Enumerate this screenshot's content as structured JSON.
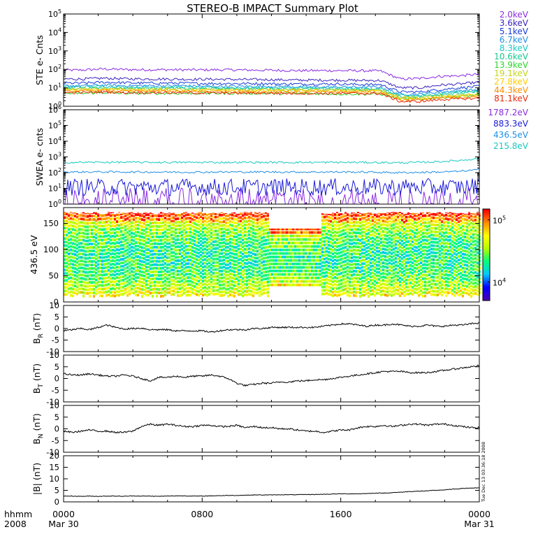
{
  "title": "STEREO-B IMPACT Summary Plot",
  "timestamp": "Tue Dec 13 03:36:18 2008",
  "x_axis": {
    "row1_label": "hhmm",
    "row2_label": "2008",
    "ticks": [
      {
        "hours": 0,
        "label": "0000",
        "date": "Mar 30"
      },
      {
        "hours": 8,
        "label": "0800",
        "date": ""
      },
      {
        "hours": 16,
        "label": "1600",
        "date": ""
      },
      {
        "hours": 24,
        "label": "0000",
        "date": "Mar 31"
      }
    ]
  },
  "chart_data": [
    {
      "type": "line",
      "id": "ste",
      "ylabel": "STE e- Cnts",
      "yscale": "log",
      "ylim": [
        1,
        100000
      ],
      "ytick_exponents": [
        0,
        1,
        2,
        3,
        4,
        5
      ],
      "series": [
        {
          "name": "2.0keV",
          "color": "#8a2be2",
          "values": [
            90,
            92,
            105,
            98,
            95,
            96,
            94,
            93,
            95,
            92,
            90,
            88,
            85,
            86,
            85,
            84,
            82,
            30,
            32,
            42,
            45,
            55
          ]
        },
        {
          "name": "3.6keV",
          "color": "#3a22c0",
          "values": [
            30,
            30,
            33,
            31,
            30,
            30,
            29,
            29,
            29,
            28,
            28,
            27,
            26,
            26,
            26,
            25,
            25,
            10,
            10,
            14,
            16,
            20
          ]
        },
        {
          "name": "5.1keV",
          "color": "#1a3ad8",
          "values": [
            18,
            18,
            20,
            19,
            18,
            18,
            18,
            17,
            17,
            17,
            17,
            16,
            16,
            16,
            16,
            15,
            15,
            6,
            6,
            8,
            10,
            12
          ]
        },
        {
          "name": "6.7keV",
          "color": "#1e8fe6",
          "values": [
            13,
            13,
            14,
            13,
            13,
            13,
            13,
            12,
            12,
            12,
            12,
            12,
            11,
            11,
            11,
            11,
            11,
            4.5,
            4.5,
            6,
            7,
            8
          ]
        },
        {
          "name": "8.3keV",
          "color": "#19c9c1",
          "values": [
            11,
            11,
            12,
            11,
            11,
            11,
            11,
            10,
            10,
            10,
            10,
            10,
            10,
            9.5,
            9.5,
            9,
            9,
            3.8,
            3.8,
            5,
            6,
            7
          ]
        },
        {
          "name": "10.6keV",
          "color": "#1ac890",
          "values": [
            9.5,
            9.5,
            10,
            9.5,
            9.5,
            9.5,
            9,
            9,
            9,
            9,
            9,
            8.5,
            8.5,
            8.5,
            8,
            8,
            8,
            3.3,
            3.3,
            4.4,
            5,
            6
          ]
        },
        {
          "name": "13.9keV",
          "color": "#2ad62a",
          "values": [
            5,
            5,
            5.5,
            5,
            5,
            5,
            5,
            5,
            5,
            5,
            5,
            4.8,
            4.8,
            4.8,
            4.6,
            4.6,
            4.6,
            2.5,
            2.5,
            3,
            3.5,
            4
          ]
        },
        {
          "name": "19.1keV",
          "color": "#c2d61e",
          "values": [
            8.5,
            8.5,
            9,
            8.5,
            8.5,
            8.5,
            8,
            8,
            8,
            8,
            8,
            7.8,
            7.8,
            7.6,
            7.5,
            7.5,
            7.5,
            3,
            3,
            3.6,
            4,
            4.5
          ]
        },
        {
          "name": "27.8keV",
          "color": "#ffcc00",
          "values": [
            7.5,
            7.5,
            8,
            7.5,
            7.5,
            7.5,
            7.2,
            7.2,
            7.2,
            7,
            7,
            7,
            7,
            6.8,
            6.8,
            6.6,
            6.6,
            2.6,
            2.6,
            3.2,
            3.4,
            3.8
          ]
        },
        {
          "name": "44.3keV",
          "color": "#ff8c00",
          "values": [
            6.5,
            6.5,
            7,
            6.5,
            6.5,
            6.5,
            6.3,
            6.3,
            6.2,
            6.2,
            6,
            6,
            6,
            6,
            5.8,
            5.8,
            5.8,
            2.2,
            2.2,
            2.8,
            3,
            3.2
          ]
        },
        {
          "name": "81.1keV",
          "color": "#e82a0a",
          "values": [
            5.5,
            5.5,
            6,
            5.5,
            5.5,
            5.5,
            5.3,
            5.3,
            5.2,
            5.2,
            5.2,
            5,
            5,
            5,
            5,
            4.9,
            4.9,
            1.8,
            1.8,
            2.3,
            2.5,
            2.7
          ]
        }
      ]
    },
    {
      "type": "line",
      "id": "swea",
      "ylabel": "SWEA e- cnts",
      "yscale": "log",
      "ylim": [
        1,
        1000000
      ],
      "ytick_exponents": [
        0,
        1,
        2,
        3,
        4,
        5,
        6
      ],
      "series": [
        {
          "name": "1787.2eV",
          "color": "#8a2be2",
          "values": [
            3,
            3,
            3,
            3,
            3,
            3,
            3,
            3,
            3,
            3,
            3,
            3,
            3,
            3,
            3,
            3,
            3,
            3,
            3,
            3,
            3,
            3
          ]
        },
        {
          "name": "883.3eV",
          "color": "#1a1ad8",
          "values": [
            12,
            12,
            12,
            12,
            12,
            12,
            12,
            12,
            12,
            12,
            12,
            12,
            12,
            12,
            12,
            12,
            12,
            12,
            12,
            12,
            12,
            14
          ]
        },
        {
          "name": "436.5eV",
          "color": "#1e8fe6",
          "values": [
            110,
            110,
            112,
            110,
            110,
            110,
            108,
            108,
            110,
            110,
            110,
            110,
            110,
            110,
            110,
            110,
            105,
            100,
            105,
            110,
            120,
            160
          ]
        },
        {
          "name": "215.8eV",
          "color": "#19c9c1",
          "values": [
            450,
            450,
            460,
            455,
            455,
            450,
            450,
            450,
            450,
            450,
            450,
            450,
            450,
            450,
            450,
            450,
            440,
            430,
            450,
            500,
            600,
            800
          ]
        }
      ]
    },
    {
      "type": "heatmap",
      "id": "pad",
      "ylabel": "436.5 eV",
      "ylim": [
        0,
        180
      ],
      "yticks": [
        0,
        50,
        100,
        150
      ],
      "colorbar": {
        "scale": "log",
        "range": [
          5000,
          150000
        ],
        "tick_labels": [
          {
            "base": "10",
            "exp": "5",
            "value": 100000
          },
          {
            "base": "10",
            "exp": "4",
            "value": 10000
          }
        ],
        "colors": [
          "#4b00b4",
          "#0000ff",
          "#00c8ff",
          "#00ff7a",
          "#b4ff00",
          "#ffff00",
          "#ff8c00",
          "#ff0000"
        ]
      },
      "gap": {
        "from_hours": 11.8,
        "to_hours": 14.8,
        "coverage_deg": [
          30,
          140
        ]
      }
    },
    {
      "type": "line",
      "id": "br",
      "ylabel_main": "B",
      "ylabel_sub": "R",
      "ylabel_unit": "(nT)",
      "ylim": [
        -10,
        10
      ],
      "yticks": [
        -10,
        -5,
        0,
        5,
        10
      ],
      "series": [
        {
          "name": "",
          "color": "#000000",
          "values": [
            -1,
            -0.5,
            0,
            -0.5,
            0.5,
            1.5,
            0.5,
            -0.2,
            0,
            0.2,
            -0.5,
            -0.5,
            -0.5,
            -1,
            -1,
            -1,
            -1,
            -1.5,
            -1,
            -0.5,
            -0.5,
            -0.5,
            0,
            0,
            0.5,
            0.5,
            0.5,
            0.5,
            0.5,
            0.5,
            1,
            1.5,
            2,
            2,
            1.5,
            1,
            1.5,
            1.5,
            2,
            1.5,
            1,
            1,
            1.5,
            1,
            1,
            1.5,
            1.5,
            2,
            2.5
          ]
        }
      ]
    },
    {
      "type": "line",
      "id": "bt",
      "ylabel_main": "B",
      "ylabel_sub": "T",
      "ylabel_unit": "(nT)",
      "ylim": [
        -10,
        10
      ],
      "yticks": [
        -10,
        -5,
        0,
        5,
        10
      ],
      "series": [
        {
          "name": "",
          "color": "#000000",
          "values": [
            2,
            1.5,
            1.5,
            2,
            1.5,
            1,
            1,
            1.5,
            1,
            0,
            -1,
            0.5,
            0.5,
            1,
            0.5,
            1,
            1,
            1.5,
            1,
            0,
            -2,
            -3,
            -2.5,
            -2,
            -2,
            -1.5,
            -1.5,
            -1,
            -1,
            -0.5,
            -0.5,
            0,
            0.5,
            1,
            1.5,
            2,
            2.5,
            3,
            3,
            3,
            2.5,
            2.5,
            2.5,
            3,
            3.5,
            4,
            4.5,
            5,
            5.5
          ]
        }
      ]
    },
    {
      "type": "line",
      "id": "bn",
      "ylabel_main": "B",
      "ylabel_sub": "N",
      "ylabel_unit": "(nT)",
      "ylim": [
        -10,
        10
      ],
      "yticks": [
        -10,
        -5,
        0,
        5,
        10
      ],
      "series": [
        {
          "name": "",
          "color": "#000000",
          "values": [
            -1,
            -1.5,
            -1,
            -0.5,
            -1,
            -1,
            -1.5,
            -1.5,
            -1,
            1,
            2,
            1.5,
            2,
            1.5,
            1,
            1,
            1.5,
            1.5,
            1,
            1,
            1.5,
            0.5,
            1,
            0.5,
            0.5,
            0,
            0,
            -0.5,
            -1,
            -1,
            -1.5,
            -1,
            -0.5,
            -0.5,
            0.5,
            1,
            1,
            1.5,
            1,
            1.5,
            2,
            2,
            1.5,
            2,
            2,
            1.5,
            1,
            0.5,
            0.5
          ]
        }
      ]
    },
    {
      "type": "line",
      "id": "bmag",
      "ylabel_main": "|B|",
      "ylabel_sub": "",
      "ylabel_unit": "(nT)",
      "ylim": [
        0,
        20
      ],
      "yticks": [
        0,
        5,
        10,
        15,
        20
      ],
      "series": [
        {
          "name": "",
          "color": "#000000",
          "values": [
            2.5,
            2.5,
            2.4,
            2.5,
            2.4,
            2.5,
            2.5,
            2.4,
            2.6,
            2.5,
            2.5,
            2.4,
            2.5,
            2.6,
            2.6,
            2.5,
            2.5,
            2.6,
            2.7,
            2.8,
            2.8,
            2.9,
            3,
            3,
            3,
            3.1,
            3.1,
            3.1,
            3.2,
            3.2,
            3.3,
            3.4,
            3.5,
            3.5,
            3.5,
            3.6,
            3.8,
            3.8,
            4,
            4.2,
            4.5,
            4.6,
            4.8,
            5,
            5.2,
            5.5,
            5.8,
            6,
            6
          ]
        }
      ]
    }
  ]
}
